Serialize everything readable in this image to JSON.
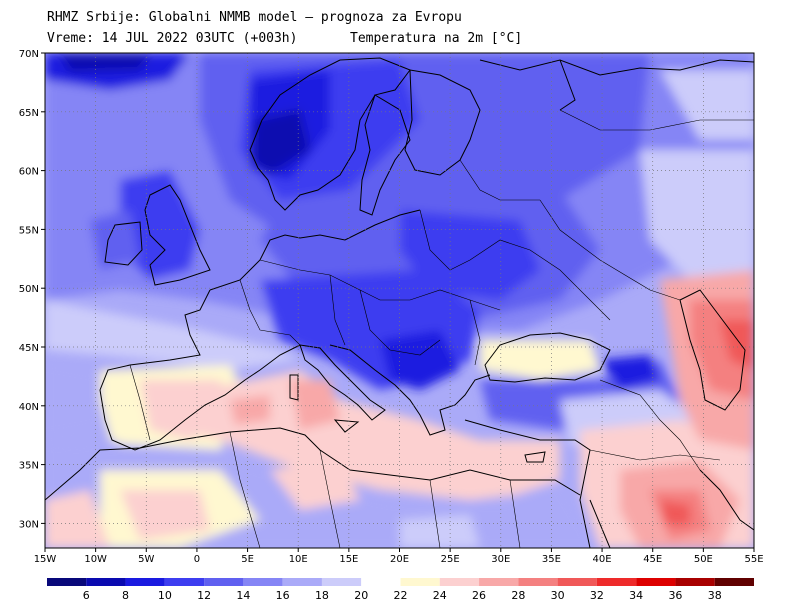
{
  "header": {
    "line1": "RHMZ Srbije: Globalni NMMB model – prognoza za Evropu",
    "line2": "Vreme: 14 JUL 2022 03UTC (+003h)",
    "parameter": "Temperatura na 2m [°C]"
  },
  "axes": {
    "lat_labels": [
      "70N",
      "65N",
      "60N",
      "55N",
      "50N",
      "45N",
      "40N",
      "35N",
      "30N"
    ],
    "lon_labels": [
      "15W",
      "10W",
      "5W",
      "0",
      "5E",
      "10E",
      "15E",
      "20E",
      "25E",
      "30E",
      "35E",
      "40E",
      "45E",
      "50E",
      "55E"
    ]
  },
  "colorbar": {
    "labels": [
      "6",
      "8",
      "10",
      "12",
      "14",
      "16",
      "18",
      "20",
      "22",
      "24",
      "26",
      "28",
      "30",
      "32",
      "34",
      "36",
      "38"
    ],
    "colors": [
      "#08087a",
      "#0a0ab0",
      "#1a1ae0",
      "#3d3df0",
      "#6060f0",
      "#8585f5",
      "#aaaaf8",
      "#ccccfa",
      "#ffffff",
      "#fff8d0",
      "#fcd0d0",
      "#f8a8a8",
      "#f48080",
      "#f05858",
      "#ee2a2a",
      "#dd0000",
      "#a80000",
      "#600000"
    ]
  }
}
